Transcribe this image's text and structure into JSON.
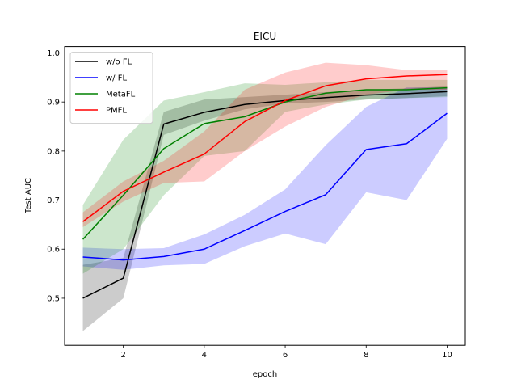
{
  "chart_data": {
    "type": "line",
    "title": "EICU",
    "xlabel": "epoch",
    "ylabel": "Test AUC",
    "xlim": [
      0.55,
      10.45
    ],
    "ylim": [
      0.404,
      1.013
    ],
    "xticks": [
      2,
      4,
      6,
      8,
      10
    ],
    "yticks": [
      0.5,
      0.6,
      0.7,
      0.8,
      0.9,
      1.0
    ],
    "ytick_labels": [
      "0.5",
      "0.6",
      "0.7",
      "0.8",
      "0.9",
      "1.0"
    ],
    "x": [
      1,
      2,
      3,
      4,
      5,
      6,
      7,
      8,
      9,
      10
    ],
    "legend_position": "upper-left",
    "series": [
      {
        "name": "w/o FL",
        "color": "#000000",
        "values": [
          0.5,
          0.541,
          0.855,
          0.879,
          0.895,
          0.903,
          0.909,
          0.914,
          0.917,
          0.921
        ],
        "band_lower": [
          0.433,
          0.5,
          0.833,
          0.862,
          0.885,
          0.897,
          0.9,
          0.905,
          0.908,
          0.912
        ],
        "band_upper": [
          0.568,
          0.582,
          0.88,
          0.905,
          0.91,
          0.915,
          0.92,
          0.925,
          0.928,
          0.932
        ]
      },
      {
        "name": "w/ FL",
        "color": "#0000ff",
        "values": [
          0.584,
          0.578,
          0.585,
          0.6,
          0.638,
          0.677,
          0.711,
          0.803,
          0.815,
          0.877
        ],
        "band_lower": [
          0.565,
          0.558,
          0.567,
          0.57,
          0.606,
          0.632,
          0.61,
          0.716,
          0.7,
          0.825
        ],
        "band_upper": [
          0.603,
          0.6,
          0.602,
          0.63,
          0.67,
          0.722,
          0.812,
          0.89,
          0.93,
          0.93
        ]
      },
      {
        "name": "MetaFL",
        "color": "#008000",
        "values": [
          0.62,
          0.71,
          0.805,
          0.856,
          0.87,
          0.9,
          0.918,
          0.925,
          0.925,
          0.929
        ],
        "band_lower": [
          0.55,
          0.6,
          0.71,
          0.79,
          0.8,
          0.88,
          0.895,
          0.905,
          0.908,
          0.91
        ],
        "band_upper": [
          0.69,
          0.823,
          0.903,
          0.92,
          0.938,
          0.935,
          0.94,
          0.945,
          0.945,
          0.945
        ]
      },
      {
        "name": "PMFL",
        "color": "#ff0000",
        "values": [
          0.656,
          0.718,
          0.757,
          0.794,
          0.86,
          0.903,
          0.933,
          0.947,
          0.953,
          0.956
        ],
        "band_lower": [
          0.645,
          0.697,
          0.735,
          0.738,
          0.8,
          0.85,
          0.89,
          0.915,
          0.925,
          0.925
        ],
        "band_upper": [
          0.675,
          0.738,
          0.78,
          0.84,
          0.925,
          0.96,
          0.98,
          0.975,
          0.965,
          0.965
        ]
      }
    ]
  }
}
